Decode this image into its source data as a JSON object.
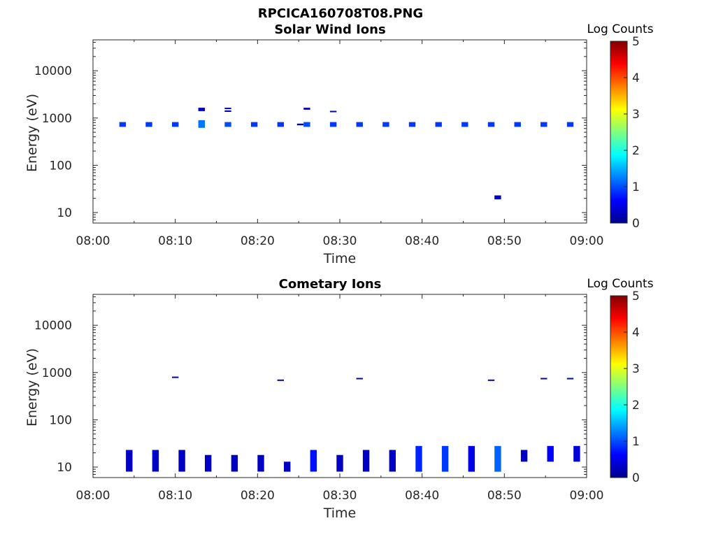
{
  "figure": {
    "title": "RPCICA160708T08.PNG"
  },
  "colorbar": {
    "label": "Log Counts",
    "range": [
      0,
      5
    ],
    "ticks": [
      "0",
      "1",
      "2",
      "3",
      "4",
      "5"
    ],
    "colormap": "jet"
  },
  "chart_data": [
    {
      "type": "heatmap",
      "title": "Solar Wind Ions",
      "xlabel": "Time",
      "ylabel": "Energy (eV)",
      "yscale": "log",
      "xlim": [
        "08:00",
        "09:00"
      ],
      "ylim": [
        6,
        45000
      ],
      "xticks": [
        "08:00",
        "08:10",
        "08:20",
        "08:30",
        "08:40",
        "08:50",
        "09:00"
      ],
      "yticks": [
        "10",
        "100",
        "1000",
        "10000"
      ],
      "cells": [
        {
          "t0": "08:03.2",
          "t1": "08:04.0",
          "e_lo": 650,
          "e_hi": 820,
          "log_counts": 0.9
        },
        {
          "t0": "08:06.4",
          "t1": "08:07.2",
          "e_lo": 650,
          "e_hi": 820,
          "log_counts": 0.9
        },
        {
          "t0": "08:09.6",
          "t1": "08:10.4",
          "e_lo": 650,
          "e_hi": 820,
          "log_counts": 0.9
        },
        {
          "t0": "08:12.8",
          "t1": "08:13.6",
          "e_lo": 620,
          "e_hi": 900,
          "log_counts": 1.2
        },
        {
          "t0": "08:12.8",
          "t1": "08:13.6",
          "e_lo": 1400,
          "e_hi": 1650,
          "log_counts": 0.3
        },
        {
          "t0": "08:16.0",
          "t1": "08:16.8",
          "e_lo": 650,
          "e_hi": 820,
          "log_counts": 1.0
        },
        {
          "t0": "08:16.0",
          "t1": "08:16.8",
          "e_lo": 1350,
          "e_hi": 1450,
          "log_counts": 0.3
        },
        {
          "t0": "08:16.0",
          "t1": "08:16.8",
          "e_lo": 1550,
          "e_hi": 1650,
          "log_counts": 0.3
        },
        {
          "t0": "08:19.2",
          "t1": "08:20.0",
          "e_lo": 650,
          "e_hi": 820,
          "log_counts": 0.9
        },
        {
          "t0": "08:22.4",
          "t1": "08:23.2",
          "e_lo": 650,
          "e_hi": 820,
          "log_counts": 0.9
        },
        {
          "t0": "08:24.8",
          "t1": "08:25.6",
          "e_lo": 700,
          "e_hi": 760,
          "log_counts": 0.3
        },
        {
          "t0": "08:25.6",
          "t1": "08:26.4",
          "e_lo": 650,
          "e_hi": 820,
          "log_counts": 1.0
        },
        {
          "t0": "08:25.6",
          "t1": "08:26.4",
          "e_lo": 1500,
          "e_hi": 1650,
          "log_counts": 0.3
        },
        {
          "t0": "08:28.8",
          "t1": "08:29.6",
          "e_lo": 650,
          "e_hi": 820,
          "log_counts": 0.9
        },
        {
          "t0": "08:28.8",
          "t1": "08:29.6",
          "e_lo": 1330,
          "e_hi": 1420,
          "log_counts": 0.3
        },
        {
          "t0": "08:32.0",
          "t1": "08:32.8",
          "e_lo": 650,
          "e_hi": 820,
          "log_counts": 0.9
        },
        {
          "t0": "08:35.2",
          "t1": "08:36.0",
          "e_lo": 650,
          "e_hi": 820,
          "log_counts": 0.9
        },
        {
          "t0": "08:38.4",
          "t1": "08:39.2",
          "e_lo": 650,
          "e_hi": 820,
          "log_counts": 0.9
        },
        {
          "t0": "08:41.6",
          "t1": "08:42.4",
          "e_lo": 650,
          "e_hi": 820,
          "log_counts": 0.9
        },
        {
          "t0": "08:44.8",
          "t1": "08:45.6",
          "e_lo": 650,
          "e_hi": 820,
          "log_counts": 0.9
        },
        {
          "t0": "08:48.0",
          "t1": "08:48.8",
          "e_lo": 650,
          "e_hi": 820,
          "log_counts": 0.9
        },
        {
          "t0": "08:48.8",
          "t1": "08:49.6",
          "e_lo": 19,
          "e_hi": 23,
          "log_counts": 0.3
        },
        {
          "t0": "08:51.2",
          "t1": "08:52.0",
          "e_lo": 650,
          "e_hi": 820,
          "log_counts": 0.9
        },
        {
          "t0": "08:54.4",
          "t1": "08:55.2",
          "e_lo": 650,
          "e_hi": 820,
          "log_counts": 0.9
        },
        {
          "t0": "08:57.6",
          "t1": "08:58.4",
          "e_lo": 650,
          "e_hi": 820,
          "log_counts": 0.9
        }
      ]
    },
    {
      "type": "heatmap",
      "title": "Cometary Ions",
      "xlabel": "Time",
      "ylabel": "Energy (eV)",
      "yscale": "log",
      "xlim": [
        "08:00",
        "09:00"
      ],
      "ylim": [
        6,
        45000
      ],
      "xticks": [
        "08:00",
        "08:10",
        "08:20",
        "08:30",
        "08:40",
        "08:50",
        "09:00"
      ],
      "yticks": [
        "10",
        "100",
        "1000",
        "10000"
      ],
      "cells": [
        {
          "t0": "08:04.0",
          "t1": "08:04.8",
          "e_lo": 8,
          "e_hi": 23,
          "log_counts": 0.3
        },
        {
          "t0": "08:07.2",
          "t1": "08:08.0",
          "e_lo": 8,
          "e_hi": 23,
          "log_counts": 0.3
        },
        {
          "t0": "08:09.6",
          "t1": "08:10.4",
          "e_lo": 780,
          "e_hi": 820,
          "log_counts": 0.3
        },
        {
          "t0": "08:10.4",
          "t1": "08:11.2",
          "e_lo": 8,
          "e_hi": 23,
          "log_counts": 0.3
        },
        {
          "t0": "08:13.6",
          "t1": "08:14.4",
          "e_lo": 8,
          "e_hi": 18,
          "log_counts": 0.3
        },
        {
          "t0": "08:16.8",
          "t1": "08:17.6",
          "e_lo": 8,
          "e_hi": 18,
          "log_counts": 0.3
        },
        {
          "t0": "08:20.0",
          "t1": "08:20.8",
          "e_lo": 8,
          "e_hi": 18,
          "log_counts": 0.3
        },
        {
          "t0": "08:22.4",
          "t1": "08:23.2",
          "e_lo": 670,
          "e_hi": 710,
          "log_counts": 0.3
        },
        {
          "t0": "08:23.2",
          "t1": "08:24.0",
          "e_lo": 8,
          "e_hi": 13,
          "log_counts": 0.3
        },
        {
          "t0": "08:26.4",
          "t1": "08:27.2",
          "e_lo": 8,
          "e_hi": 23,
          "log_counts": 0.7
        },
        {
          "t0": "08:29.6",
          "t1": "08:30.4",
          "e_lo": 8,
          "e_hi": 18,
          "log_counts": 0.3
        },
        {
          "t0": "08:32.0",
          "t1": "08:32.8",
          "e_lo": 730,
          "e_hi": 770,
          "log_counts": 0.3
        },
        {
          "t0": "08:32.8",
          "t1": "08:33.6",
          "e_lo": 8,
          "e_hi": 23,
          "log_counts": 0.3
        },
        {
          "t0": "08:36.0",
          "t1": "08:36.8",
          "e_lo": 8,
          "e_hi": 23,
          "log_counts": 0.3
        },
        {
          "t0": "08:39.2",
          "t1": "08:40.0",
          "e_lo": 8,
          "e_hi": 28,
          "log_counts": 0.8
        },
        {
          "t0": "08:42.4",
          "t1": "08:43.2",
          "e_lo": 8,
          "e_hi": 28,
          "log_counts": 0.9
        },
        {
          "t0": "08:45.6",
          "t1": "08:46.4",
          "e_lo": 8,
          "e_hi": 28,
          "log_counts": 0.5
        },
        {
          "t0": "08:48.0",
          "t1": "08:48.8",
          "e_lo": 670,
          "e_hi": 710,
          "log_counts": 0.3
        },
        {
          "t0": "08:48.8",
          "t1": "08:49.6",
          "e_lo": 8,
          "e_hi": 28,
          "log_counts": 1.1
        },
        {
          "t0": "08:52.0",
          "t1": "08:52.8",
          "e_lo": 13,
          "e_hi": 23,
          "log_counts": 0.3
        },
        {
          "t0": "08:54.4",
          "t1": "08:55.2",
          "e_lo": 730,
          "e_hi": 770,
          "log_counts": 0.3
        },
        {
          "t0": "08:55.2",
          "t1": "08:56.0",
          "e_lo": 13,
          "e_hi": 28,
          "log_counts": 0.6
        },
        {
          "t0": "08:57.6",
          "t1": "08:58.4",
          "e_lo": 730,
          "e_hi": 770,
          "log_counts": 0.3
        },
        {
          "t0": "08:58.4",
          "t1": "08:59.2",
          "e_lo": 13,
          "e_hi": 28,
          "log_counts": 0.4
        }
      ]
    }
  ]
}
